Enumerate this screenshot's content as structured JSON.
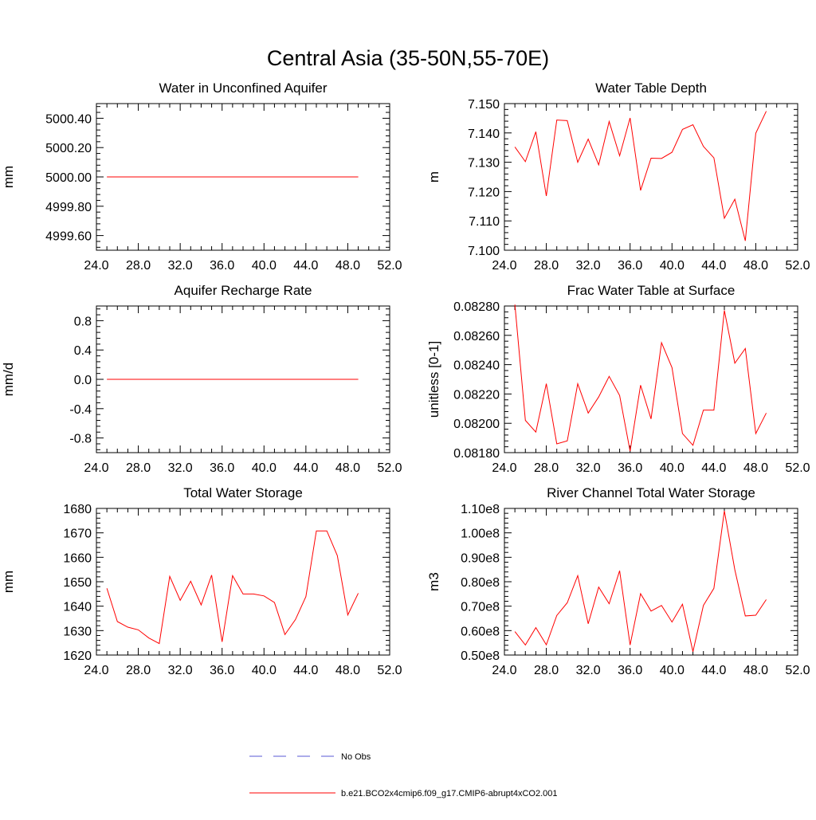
{
  "figure": {
    "title": "Central Asia (35-50N,55-70E)"
  },
  "legend": {
    "entries": [
      {
        "label": "No Obs",
        "style": "dashed",
        "color": "#5a5ad6"
      },
      {
        "label": "b.e21.BCO2x4cmip6.f09_g17.CMIP6-abrupt4xCO2.001",
        "style": "solid",
        "color": "#ff0000"
      }
    ]
  },
  "chart_data": [
    {
      "type": "line",
      "title": "Water in Unconfined Aquifer",
      "ylabel": "mm",
      "xlim": [
        24,
        52
      ],
      "ylim": [
        4999.5,
        5000.5
      ],
      "xticks": [
        24,
        28,
        32,
        36,
        40,
        44,
        48,
        52
      ],
      "xtick_labels": [
        "24.0",
        "28.0",
        "32.0",
        "36.0",
        "40.0",
        "44.0",
        "48.0",
        "52.0"
      ],
      "yticks": [
        4999.6,
        4999.8,
        5000.0,
        5000.2,
        5000.4
      ],
      "ytick_labels": [
        "4999.60",
        "4999.80",
        "5000.00",
        "5000.20",
        "5000.40"
      ],
      "x": [
        25,
        26,
        27,
        28,
        29,
        30,
        31,
        32,
        33,
        34,
        35,
        36,
        37,
        38,
        39,
        40,
        41,
        42,
        43,
        44,
        45,
        46,
        47,
        48,
        49
      ],
      "series": [
        {
          "name": "b.e21.BCO2x4cmip6.f09_g17.CMIP6-abrupt4xCO2.001",
          "color": "#ff0000",
          "values": [
            5000,
            5000,
            5000,
            5000,
            5000,
            5000,
            5000,
            5000,
            5000,
            5000,
            5000,
            5000,
            5000,
            5000,
            5000,
            5000,
            5000,
            5000,
            5000,
            5000,
            5000,
            5000,
            5000,
            5000,
            5000
          ]
        }
      ]
    },
    {
      "type": "line",
      "title": "Water Table Depth",
      "ylabel": "m",
      "xlim": [
        24,
        52
      ],
      "ylim": [
        7.1,
        7.15
      ],
      "xticks": [
        24,
        28,
        32,
        36,
        40,
        44,
        48,
        52
      ],
      "xtick_labels": [
        "24.0",
        "28.0",
        "32.0",
        "36.0",
        "40.0",
        "44.0",
        "48.0",
        "52.0"
      ],
      "yticks": [
        7.1,
        7.11,
        7.12,
        7.13,
        7.14,
        7.15
      ],
      "ytick_labels": [
        "7.100",
        "7.110",
        "7.120",
        "7.130",
        "7.140",
        "7.150"
      ],
      "x": [
        25,
        26,
        27,
        28,
        29,
        30,
        31,
        32,
        33,
        34,
        35,
        36,
        37,
        38,
        39,
        40,
        41,
        42,
        43,
        44,
        45,
        46,
        47,
        48,
        49
      ],
      "series": [
        {
          "name": "b.e21.BCO2x4cmip6.f09_g17.CMIP6-abrupt4xCO2.001",
          "color": "#ff0000",
          "values": [
            7.1352,
            7.1302,
            7.1404,
            7.1185,
            7.1444,
            7.1442,
            7.13,
            7.1379,
            7.1291,
            7.1439,
            7.1322,
            7.1451,
            7.1204,
            7.1314,
            7.1313,
            7.1334,
            7.1412,
            7.1428,
            7.1354,
            7.1315,
            7.1109,
            7.1174,
            7.1032,
            7.1399,
            7.1474
          ]
        }
      ]
    },
    {
      "type": "line",
      "title": "Aquifer Recharge Rate",
      "ylabel": "mm/d",
      "xlim": [
        24,
        52
      ],
      "ylim": [
        -1.0,
        1.0
      ],
      "xticks": [
        24,
        28,
        32,
        36,
        40,
        44,
        48,
        52
      ],
      "xtick_labels": [
        "24.0",
        "28.0",
        "32.0",
        "36.0",
        "40.0",
        "44.0",
        "48.0",
        "52.0"
      ],
      "yticks": [
        -0.8,
        -0.4,
        0.0,
        0.4,
        0.8
      ],
      "ytick_labels": [
        "-0.8",
        "-0.4",
        "0.0",
        "0.4",
        "0.8"
      ],
      "x": [
        25,
        26,
        27,
        28,
        29,
        30,
        31,
        32,
        33,
        34,
        35,
        36,
        37,
        38,
        39,
        40,
        41,
        42,
        43,
        44,
        45,
        46,
        47,
        48,
        49
      ],
      "series": [
        {
          "name": "b.e21.BCO2x4cmip6.f09_g17.CMIP6-abrupt4xCO2.001",
          "color": "#ff0000",
          "values": [
            0,
            0,
            0,
            0,
            0,
            0,
            0,
            0,
            0,
            0,
            0,
            0,
            0,
            0,
            0,
            0,
            0,
            0,
            0,
            0,
            0,
            0,
            0,
            0,
            0
          ]
        }
      ]
    },
    {
      "type": "line",
      "title": "Frac Water Table at Surface",
      "ylabel": "unitless [0-1]",
      "xlim": [
        24,
        52
      ],
      "ylim": [
        0.0818,
        0.0828
      ],
      "xticks": [
        24,
        28,
        32,
        36,
        40,
        44,
        48,
        52
      ],
      "xtick_labels": [
        "24.0",
        "28.0",
        "32.0",
        "36.0",
        "40.0",
        "44.0",
        "48.0",
        "52.0"
      ],
      "yticks": [
        0.0818,
        0.082,
        0.0822,
        0.0824,
        0.0826,
        0.0828
      ],
      "ytick_labels": [
        "0.08180",
        "0.08200",
        "0.08220",
        "0.08240",
        "0.08260",
        "0.08280"
      ],
      "x": [
        25,
        26,
        27,
        28,
        29,
        30,
        31,
        32,
        33,
        34,
        35,
        36,
        37,
        38,
        39,
        40,
        41,
        42,
        43,
        44,
        45,
        46,
        47,
        48,
        49
      ],
      "series": [
        {
          "name": "b.e21.BCO2x4cmip6.f09_g17.CMIP6-abrupt4xCO2.001",
          "color": "#ff0000",
          "values": [
            0.08281,
            0.08202,
            0.08194,
            0.08227,
            0.08186,
            0.08188,
            0.08227,
            0.08207,
            0.08218,
            0.08232,
            0.08219,
            0.08181,
            0.08226,
            0.08203,
            0.08255,
            0.08238,
            0.08193,
            0.08185,
            0.08209,
            0.08209,
            0.08277,
            0.08241,
            0.08251,
            0.08193,
            0.08207
          ]
        }
      ]
    },
    {
      "type": "line",
      "title": "Total Water Storage",
      "ylabel": "mm",
      "xlim": [
        24,
        52
      ],
      "ylim": [
        1620,
        1680
      ],
      "xticks": [
        24,
        28,
        32,
        36,
        40,
        44,
        48,
        52
      ],
      "xtick_labels": [
        "24.0",
        "28.0",
        "32.0",
        "36.0",
        "40.0",
        "44.0",
        "48.0",
        "52.0"
      ],
      "yticks": [
        1620,
        1630,
        1640,
        1650,
        1660,
        1670,
        1680
      ],
      "ytick_labels": [
        "1620",
        "1630",
        "1640",
        "1650",
        "1660",
        "1670",
        "1680"
      ],
      "x": [
        25,
        26,
        27,
        28,
        29,
        30,
        31,
        32,
        33,
        34,
        35,
        36,
        37,
        38,
        39,
        40,
        41,
        42,
        43,
        44,
        45,
        46,
        47,
        48,
        49
      ],
      "series": [
        {
          "name": "b.e21.BCO2x4cmip6.f09_g17.CMIP6-abrupt4xCO2.001",
          "color": "#ff0000",
          "values": [
            1647.3,
            1633.7,
            1631.4,
            1630.3,
            1627.0,
            1624.7,
            1652.2,
            1642.4,
            1650.2,
            1640.5,
            1652.7,
            1625.4,
            1652.5,
            1645.0,
            1645.0,
            1644.2,
            1641.5,
            1628.4,
            1634.5,
            1643.9,
            1670.8,
            1670.8,
            1660.7,
            1636.4,
            1645.3
          ]
        }
      ]
    },
    {
      "type": "line",
      "title": "River Channel Total Water Storage",
      "ylabel": "m3",
      "xlim": [
        24,
        52
      ],
      "ylim": [
        50000000,
        110000000
      ],
      "xticks": [
        24,
        28,
        32,
        36,
        40,
        44,
        48,
        52
      ],
      "xtick_labels": [
        "24.0",
        "28.0",
        "32.0",
        "36.0",
        "40.0",
        "44.0",
        "48.0",
        "52.0"
      ],
      "yticks": [
        50000000,
        60000000,
        70000000,
        80000000,
        90000000,
        100000000,
        110000000
      ],
      "ytick_labels": [
        "0.50e8",
        "0.60e8",
        "0.70e8",
        "0.80e8",
        "0.90e8",
        "1.00e8",
        "1.10e8"
      ],
      "x": [
        25,
        26,
        27,
        28,
        29,
        30,
        31,
        32,
        33,
        34,
        35,
        36,
        37,
        38,
        39,
        40,
        41,
        42,
        43,
        44,
        45,
        46,
        47,
        48,
        49
      ],
      "series": [
        {
          "name": "b.e21.BCO2x4cmip6.f09_g17.CMIP6-abrupt4xCO2.001",
          "color": "#ff0000",
          "values": [
            59600000,
            54100000,
            61200000,
            54200000,
            66200000,
            71400000,
            82500000,
            62800000,
            77800000,
            71000000,
            84500000,
            54100000,
            75100000,
            68000000,
            70300000,
            63500000,
            70800000,
            51400000,
            70300000,
            77300000,
            109000000,
            84900000,
            66000000,
            66300000,
            72700000
          ]
        }
      ]
    }
  ]
}
